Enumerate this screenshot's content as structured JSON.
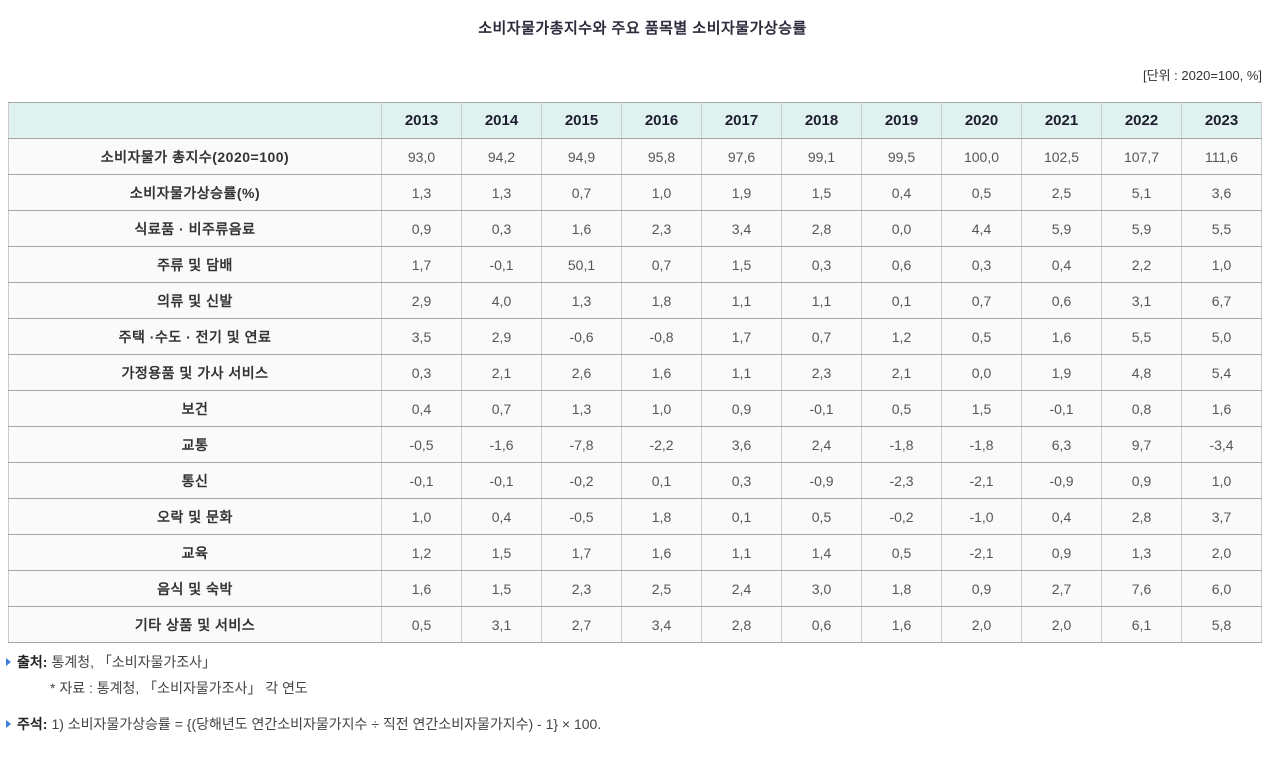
{
  "page": {
    "title": "소비자물가총지수와 주요 품목별 소비자물가상승률",
    "unit_label": "[단위 : 2020=100, %]"
  },
  "colors": {
    "header_background": "#dff2f0",
    "cell_background": "#fafafa",
    "bullet_accent": "#3f7ed8",
    "header_text": "#1d1d2e",
    "value_text": "#565656"
  },
  "icons": {
    "source_bullet": "triangle-right-icon",
    "note_bullet": "triangle-right-icon"
  },
  "chart_data": {
    "type": "table",
    "title": "소비자물가총지수와 주요 품목별 소비자물가상승률",
    "unit": "2020=100, %",
    "decimal_separator_shown": ",",
    "years": [
      "2013",
      "2014",
      "2015",
      "2016",
      "2017",
      "2018",
      "2019",
      "2020",
      "2021",
      "2022",
      "2023"
    ],
    "rows": [
      {
        "label": "소비자물가 총지수(2020=100)",
        "values": [
          "93,0",
          "94,2",
          "94,9",
          "95,8",
          "97,6",
          "99,1",
          "99,5",
          "100,0",
          "102,5",
          "107,7",
          "111,6"
        ]
      },
      {
        "label": "소비자물가상승률(%)",
        "values": [
          "1,3",
          "1,3",
          "0,7",
          "1,0",
          "1,9",
          "1,5",
          "0,4",
          "0,5",
          "2,5",
          "5,1",
          "3,6"
        ]
      },
      {
        "label": "식료품 · 비주류음료",
        "values": [
          "0,9",
          "0,3",
          "1,6",
          "2,3",
          "3,4",
          "2,8",
          "0,0",
          "4,4",
          "5,9",
          "5,9",
          "5,5"
        ]
      },
      {
        "label": "주류 및 담배",
        "values": [
          "1,7",
          "-0,1",
          "50,1",
          "0,7",
          "1,5",
          "0,3",
          "0,6",
          "0,3",
          "0,4",
          "2,2",
          "1,0"
        ]
      },
      {
        "label": "의류 및 신발",
        "values": [
          "2,9",
          "4,0",
          "1,3",
          "1,8",
          "1,1",
          "1,1",
          "0,1",
          "0,7",
          "0,6",
          "3,1",
          "6,7"
        ]
      },
      {
        "label": "주택 ·수도 · 전기 및 연료",
        "values": [
          "3,5",
          "2,9",
          "-0,6",
          "-0,8",
          "1,7",
          "0,7",
          "1,2",
          "0,5",
          "1,6",
          "5,5",
          "5,0"
        ]
      },
      {
        "label": "가정용품 및 가사 서비스",
        "values": [
          "0,3",
          "2,1",
          "2,6",
          "1,6",
          "1,1",
          "2,3",
          "2,1",
          "0,0",
          "1,9",
          "4,8",
          "5,4"
        ]
      },
      {
        "label": "보건",
        "values": [
          "0,4",
          "0,7",
          "1,3",
          "1,0",
          "0,9",
          "-0,1",
          "0,5",
          "1,5",
          "-0,1",
          "0,8",
          "1,6"
        ]
      },
      {
        "label": "교통",
        "values": [
          "-0,5",
          "-1,6",
          "-7,8",
          "-2,2",
          "3,6",
          "2,4",
          "-1,8",
          "-1,8",
          "6,3",
          "9,7",
          "-3,4"
        ]
      },
      {
        "label": "통신",
        "values": [
          "-0,1",
          "-0,1",
          "-0,2",
          "0,1",
          "0,3",
          "-0,9",
          "-2,3",
          "-2,1",
          "-0,9",
          "0,9",
          "1,0"
        ]
      },
      {
        "label": "오락 및 문화",
        "values": [
          "1,0",
          "0,4",
          "-0,5",
          "1,8",
          "0,1",
          "0,5",
          "-0,2",
          "-1,0",
          "0,4",
          "2,8",
          "3,7"
        ]
      },
      {
        "label": "교육",
        "values": [
          "1,2",
          "1,5",
          "1,7",
          "1,6",
          "1,1",
          "1,4",
          "0,5",
          "-2,1",
          "0,9",
          "1,3",
          "2,0"
        ]
      },
      {
        "label": "음식 및 숙박",
        "values": [
          "1,6",
          "1,5",
          "2,3",
          "2,5",
          "2,4",
          "3,0",
          "1,8",
          "0,9",
          "2,7",
          "7,6",
          "6,0"
        ]
      },
      {
        "label": "기타 상품 및 서비스",
        "values": [
          "0,5",
          "3,1",
          "2,7",
          "3,4",
          "2,8",
          "0,6",
          "1,6",
          "2,0",
          "2,0",
          "6,1",
          "5,8"
        ]
      }
    ]
  },
  "footnotes": {
    "source_label": "출처:",
    "source_text": "통계청, 「소비자물가조사」",
    "source_sub": "* 자료 : 통계청, 「소비자물가조사」 각 연도",
    "note_label": "주석:",
    "note_text": "1) 소비자물가상승률 = {(당해년도 연간소비자물가지수 ÷ 직전 연간소비자물가지수) - 1} × 100."
  }
}
